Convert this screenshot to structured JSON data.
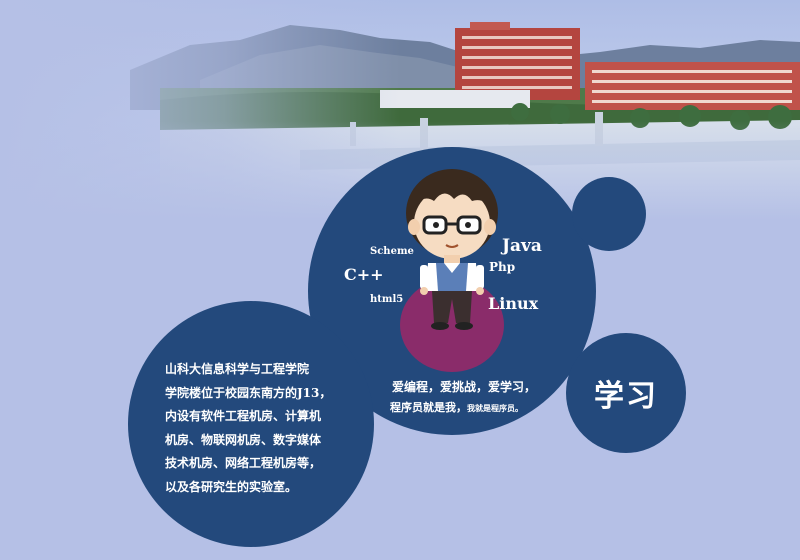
{
  "description": {
    "lines": [
      "山科大信息科学与工程学院",
      "学院楼位于校园东南方的J13，",
      "内设有软件工程机房、计算机",
      "机房、物联网机房、数字媒体",
      "技术机房、网络工程机房等，",
      "以及各研究生的实验室。"
    ]
  },
  "languages": {
    "scheme": "Scheme",
    "java": "Java",
    "cpp": "C++",
    "php": "Php",
    "html5": "html5",
    "linux": "Linux"
  },
  "slogan": {
    "line1_big": "爱编程，爱挑战，爱学习，",
    "line2_big": "程序员就是我，",
    "line2_small": "我就是程序员。"
  },
  "study_label": "学习",
  "colors": {
    "circle_blue": "#23497c",
    "background": "#b5c0e6",
    "purple_spot": "#8a2c6a"
  }
}
